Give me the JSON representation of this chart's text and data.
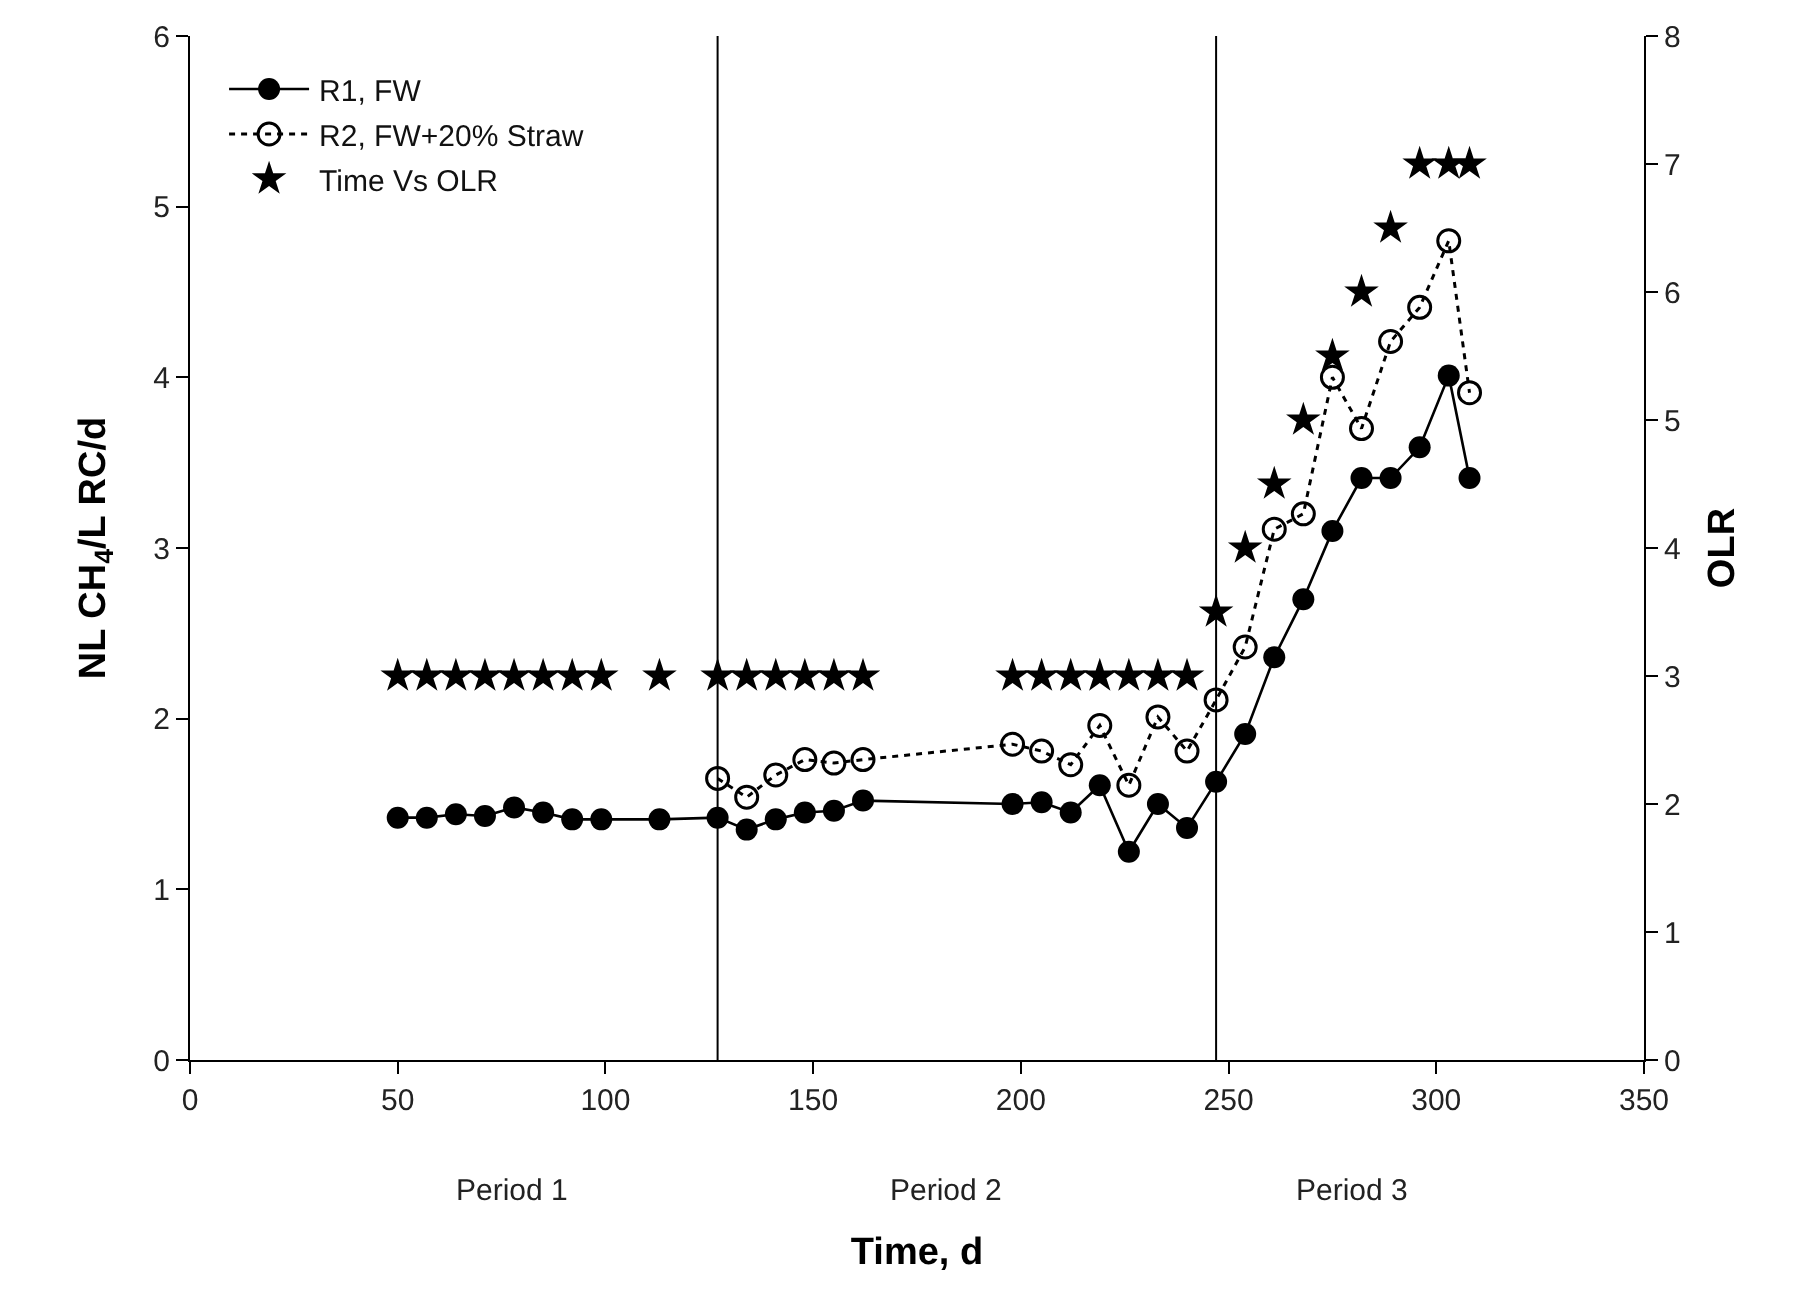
{
  "chart_data": {
    "type": "line",
    "xlabel": "Time, d",
    "ylabel": "NL CH$_{4}$/L RC/d",
    "y2label": "OLR",
    "xlim": [
      0,
      350
    ],
    "xticks": [
      0,
      50,
      100,
      150,
      200,
      250,
      300,
      350
    ],
    "ylim": [
      0,
      6
    ],
    "yticks": [
      0,
      1,
      2,
      3,
      4,
      5,
      6
    ],
    "y2lim": [
      0,
      8
    ],
    "y2ticks": [
      0,
      1,
      2,
      3,
      4,
      5,
      6,
      7,
      8
    ],
    "grid": false,
    "legend": "top left",
    "series": [
      {
        "name": "R1, FW",
        "color": "#000000",
        "marker": "circle",
        "line_style": "solid",
        "x": [
          50,
          57,
          64,
          71,
          78,
          85,
          92,
          99,
          113,
          127,
          134,
          141,
          148,
          155,
          162,
          198,
          205,
          212,
          219,
          226,
          233,
          240,
          247,
          254,
          261,
          268,
          275,
          282,
          289,
          296,
          303,
          308
        ],
        "values": [
          1.42,
          1.42,
          1.44,
          1.43,
          1.48,
          1.45,
          1.41,
          1.41,
          1.41,
          1.42,
          1.35,
          1.41,
          1.45,
          1.46,
          1.52,
          1.5,
          1.51,
          1.45,
          1.61,
          1.22,
          1.5,
          1.36,
          1.63,
          1.91,
          2.36,
          2.7,
          3.1,
          3.41,
          3.41,
          3.59,
          4.01,
          3.41
        ]
      },
      {
        "name": "R2, FW+20% Straw",
        "color": "#000000",
        "marker": "circle-open",
        "line_style": "dotted",
        "x": [
          127,
          134,
          141,
          148,
          155,
          162,
          198,
          205,
          212,
          219,
          226,
          233,
          240,
          247,
          254,
          261,
          268,
          275,
          282,
          289,
          296,
          303,
          308
        ],
        "values": [
          1.65,
          1.54,
          1.67,
          1.76,
          1.74,
          1.76,
          1.85,
          1.81,
          1.73,
          1.96,
          1.61,
          2.01,
          1.81,
          2.11,
          2.42,
          3.11,
          3.2,
          4.0,
          3.7,
          4.21,
          4.41,
          4.8,
          3.91
        ]
      },
      {
        "name": "Time Vs OLR",
        "type": "scatter",
        "axis": "y2",
        "color": "#000000",
        "marker": "star",
        "x": [
          50,
          57,
          64,
          71,
          78,
          85,
          92,
          99,
          113,
          127,
          134,
          141,
          148,
          155,
          162,
          198,
          205,
          212,
          219,
          226,
          233,
          240,
          247,
          254,
          261,
          268,
          275,
          282,
          289,
          296,
          303,
          308
        ],
        "values": [
          3,
          3,
          3,
          3,
          3,
          3,
          3,
          3,
          3,
          3,
          3,
          3,
          3,
          3,
          3,
          3,
          3,
          3,
          3,
          3,
          3,
          3,
          3.5,
          4,
          4.5,
          5,
          5.5,
          6,
          6.5,
          7,
          7,
          7
        ]
      }
    ],
    "ref_lines": [
      {
        "axis": "x",
        "value": 127,
        "color": "#000000"
      },
      {
        "axis": "x",
        "value": 247,
        "color": "#000000"
      }
    ],
    "annotations": [
      "Period 1",
      "Period 2",
      "Period 3"
    ]
  }
}
